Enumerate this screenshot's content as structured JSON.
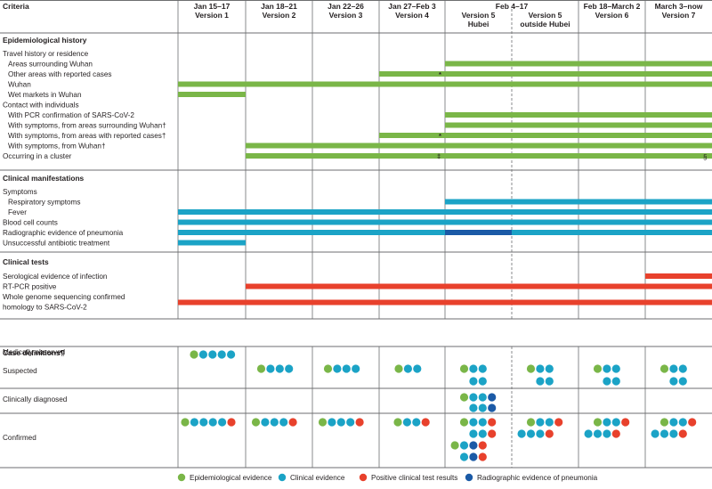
{
  "criteria_header": "Criteria",
  "versions": [
    {
      "date": "Jan 15–17",
      "name": "Version 1"
    },
    {
      "date": "Jan 18–21",
      "name": "Version 2"
    },
    {
      "date": "Jan 22–26",
      "name": "Version 3"
    },
    {
      "date": "Jan 27–Feb 3",
      "name": "Version 4"
    },
    {
      "date": "Feb 4–17",
      "name": "Version 5",
      "sub": "Hubei"
    },
    {
      "date": "",
      "name": "Version 5",
      "sub": "outside Hubei"
    },
    {
      "date": "Feb 18–March 2",
      "name": "Version 6"
    },
    {
      "date": "March 3–now",
      "name": "Version 7"
    }
  ],
  "colors": {
    "epidemiological": "#7ab648",
    "clinical": "#1ba3c6",
    "positive_test": "#e8412c",
    "radiographic": "#1b5aa6"
  },
  "sections": [
    {
      "title": "Epidemiological history"
    },
    {
      "title": "Clinical manifestations"
    },
    {
      "title": "Clinical tests"
    },
    {
      "title": "Case definitions¶"
    }
  ],
  "epi_rows": [
    {
      "label": "Travel history or residence",
      "indent": 0,
      "bars": []
    },
    {
      "label": "Areas surrounding Wuhan",
      "indent": 1,
      "bars": [
        [
          4,
          8
        ]
      ]
    },
    {
      "label": "Other areas with reported cases",
      "indent": 1,
      "bars": [
        [
          3,
          8
        ]
      ],
      "mark": "*"
    },
    {
      "label": "Wuhan",
      "indent": 1,
      "bars": [
        [
          0,
          8
        ]
      ]
    },
    {
      "label": "Wet markets in Wuhan",
      "indent": 1,
      "bars": [
        [
          0,
          1
        ]
      ]
    },
    {
      "label": "Contact with individuals",
      "indent": 0,
      "bars": []
    },
    {
      "label": "With PCR confirmation of SARS-CoV-2",
      "indent": 1,
      "bars": [
        [
          4,
          8
        ]
      ]
    },
    {
      "label": "With symptoms, from areas surrounding Wuhan†",
      "indent": 1,
      "bars": [
        [
          4,
          8
        ]
      ]
    },
    {
      "label": "With symptoms, from areas with reported cases†",
      "indent": 1,
      "bars": [
        [
          3,
          8
        ]
      ],
      "mark": "*"
    },
    {
      "label": "With symptoms, from Wuhan†",
      "indent": 1,
      "bars": [
        [
          1,
          8
        ]
      ]
    },
    {
      "label": "Occurring in a cluster",
      "indent": 0,
      "bars": [
        [
          1,
          8
        ]
      ],
      "mark": "‡",
      "mark2": "§"
    }
  ],
  "clin_rows": [
    {
      "label": "Symptoms",
      "indent": 0,
      "bars": []
    },
    {
      "label": "Respiratory symptoms",
      "indent": 1,
      "bars": [
        [
          4,
          8
        ]
      ]
    },
    {
      "label": "Fever",
      "indent": 1,
      "bars": [
        [
          0,
          8
        ]
      ]
    },
    {
      "label": "Blood cell counts",
      "indent": 0,
      "bars": [
        [
          0,
          8
        ]
      ]
    },
    {
      "label": "Radiographic evidence of pneumonia",
      "indent": 0,
      "bars": [
        [
          0,
          4
        ],
        [
          5,
          8
        ]
      ],
      "rad": [
        4,
        5
      ]
    },
    {
      "label": "Unsuccessful antibiotic treatment",
      "indent": 0,
      "bars": [
        [
          0,
          1
        ]
      ]
    }
  ],
  "test_rows": [
    {
      "label": "Serological evidence of infection",
      "indent": 0,
      "bars": [
        [
          7,
          8
        ]
      ]
    },
    {
      "label": "RT-PCR positive",
      "indent": 0,
      "bars": [
        [
          1,
          8
        ]
      ]
    },
    {
      "label": "Whole genome sequencing confirmed",
      "indent": 0,
      "bars": [
        [
          0,
          8
        ]
      ]
    },
    {
      "label": "homology to SARS-CoV-2",
      "indent": 0,
      "bars": []
    }
  ],
  "case_rows": [
    {
      "label": "Medically observed"
    },
    {
      "label": "Suspected"
    },
    {
      "label": "Clinically diagnosed"
    },
    {
      "label": "Confirmed"
    }
  ],
  "legend": [
    {
      "key": "epidemiological",
      "label": "Epidemiological evidence"
    },
    {
      "key": "clinical",
      "label": "Clinical evidence"
    },
    {
      "key": "positive_test",
      "label": "Positive clinical test results"
    },
    {
      "key": "radiographic",
      "label": "Radiographic evidence of pneumonia"
    }
  ]
}
